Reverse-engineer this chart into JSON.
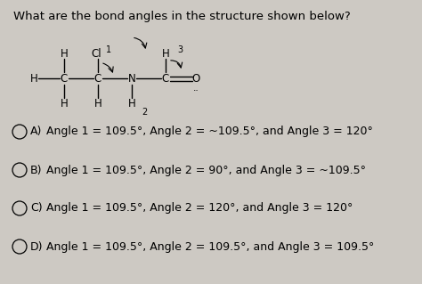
{
  "title": "What are the bond angles in the structure shown below?",
  "background_color": "#cdc9c3",
  "options": [
    {
      "label": "A)",
      "text": "Angle 1 = 109.5°, Angle 2 = ~109.5°, and Angle 3 = 120°"
    },
    {
      "label": "B)",
      "text": "Angle 1 = 109.5°, Angle 2 = 90°, and Angle 3 = ~109.5°"
    },
    {
      "label": "C)",
      "text": "Angle 1 = 109.5°, Angle 2 = 120°, and Angle 3 = 120°"
    },
    {
      "label": "D)",
      "text": "Angle 1 = 109.5°, Angle 2 = 109.5°, and Angle 3 = 109.5°"
    }
  ],
  "font_size_title": 9.5,
  "font_size_options": 9.0,
  "font_size_molecule": 8.5,
  "font_size_number": 7.0
}
